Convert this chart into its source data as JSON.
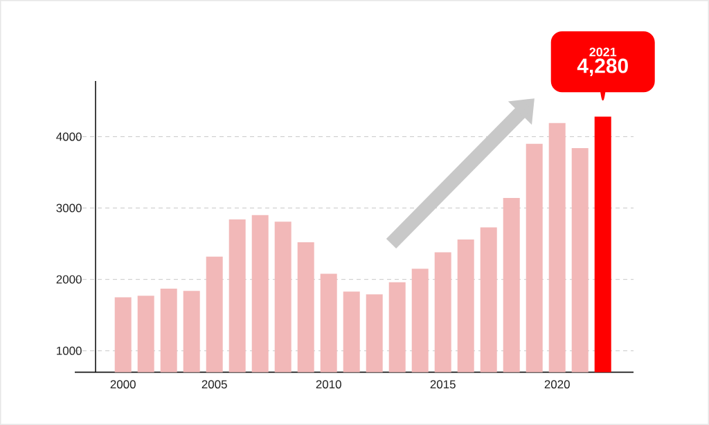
{
  "chart_data": {
    "type": "bar",
    "categories": [
      "2000",
      null,
      null,
      null,
      "2005",
      null,
      null,
      null,
      null,
      "2010",
      null,
      null,
      null,
      null,
      "2015",
      null,
      null,
      null,
      null,
      "2020",
      null,
      null
    ],
    "values": [
      1750,
      1770,
      1870,
      1840,
      2320,
      2840,
      2900,
      2810,
      2520,
      2080,
      1830,
      1790,
      1960,
      2150,
      2380,
      2560,
      2730,
      3140,
      3900,
      4190,
      3840,
      4280
    ],
    "colors": [
      "#f2b8b8",
      "#f2b8b8",
      "#f2b8b8",
      "#f2b8b8",
      "#f2b8b8",
      "#f2b8b8",
      "#f2b8b8",
      "#f2b8b8",
      "#f2b8b8",
      "#f2b8b8",
      "#f2b8b8",
      "#f2b8b8",
      "#f2b8b8",
      "#f2b8b8",
      "#f2b8b8",
      "#f2b8b8",
      "#f2b8b8",
      "#f2b8b8",
      "#f2b8b8",
      "#f2b8b8",
      "#f2b8b8",
      "#ff0000"
    ],
    "value_labels": [
      null,
      null,
      null,
      null,
      null,
      null,
      null,
      null,
      null,
      null,
      null,
      null,
      null,
      null,
      null,
      null,
      null,
      null,
      null,
      null,
      null,
      "4,280"
    ],
    "annotations": [
      "2021"
    ],
    "ylim": [
      700,
      4780
    ],
    "yticks": [
      1000,
      2000,
      3000,
      4000
    ],
    "grid": "y"
  }
}
